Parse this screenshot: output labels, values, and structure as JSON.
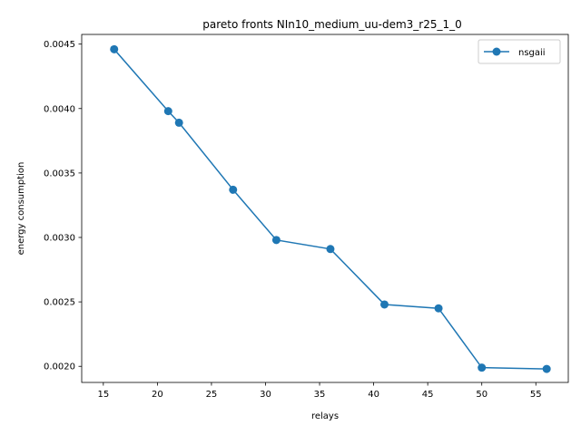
{
  "chart_data": {
    "type": "line",
    "title": "pareto fronts NIn10_medium_uu-dem3_r25_1_0",
    "xlabel": "relays",
    "ylabel": "energy consumption",
    "xlim": [
      13.0,
      58.0
    ],
    "ylim": [
      0.001875,
      0.004575
    ],
    "xticks": [
      15,
      20,
      25,
      30,
      35,
      40,
      45,
      50,
      55
    ],
    "yticks": [
      0.002,
      0.0025,
      0.003,
      0.0035,
      0.004,
      0.0045
    ],
    "xtick_labels": [
      "15",
      "20",
      "25",
      "30",
      "35",
      "40",
      "45",
      "50",
      "55"
    ],
    "ytick_labels": [
      "0.0020",
      "0.0025",
      "0.0030",
      "0.0035",
      "0.0040",
      "0.0045"
    ],
    "grid": false,
    "legend_position": "top-right",
    "series": [
      {
        "name": "nsgaii",
        "color": "#1f77b4",
        "marker": "circle",
        "x": [
          16,
          21,
          22,
          27,
          31,
          36,
          41,
          46,
          50,
          56
        ],
        "y": [
          0.00446,
          0.00398,
          0.00389,
          0.00337,
          0.00298,
          0.00291,
          0.00248,
          0.00245,
          0.00199,
          0.00198
        ]
      }
    ]
  }
}
